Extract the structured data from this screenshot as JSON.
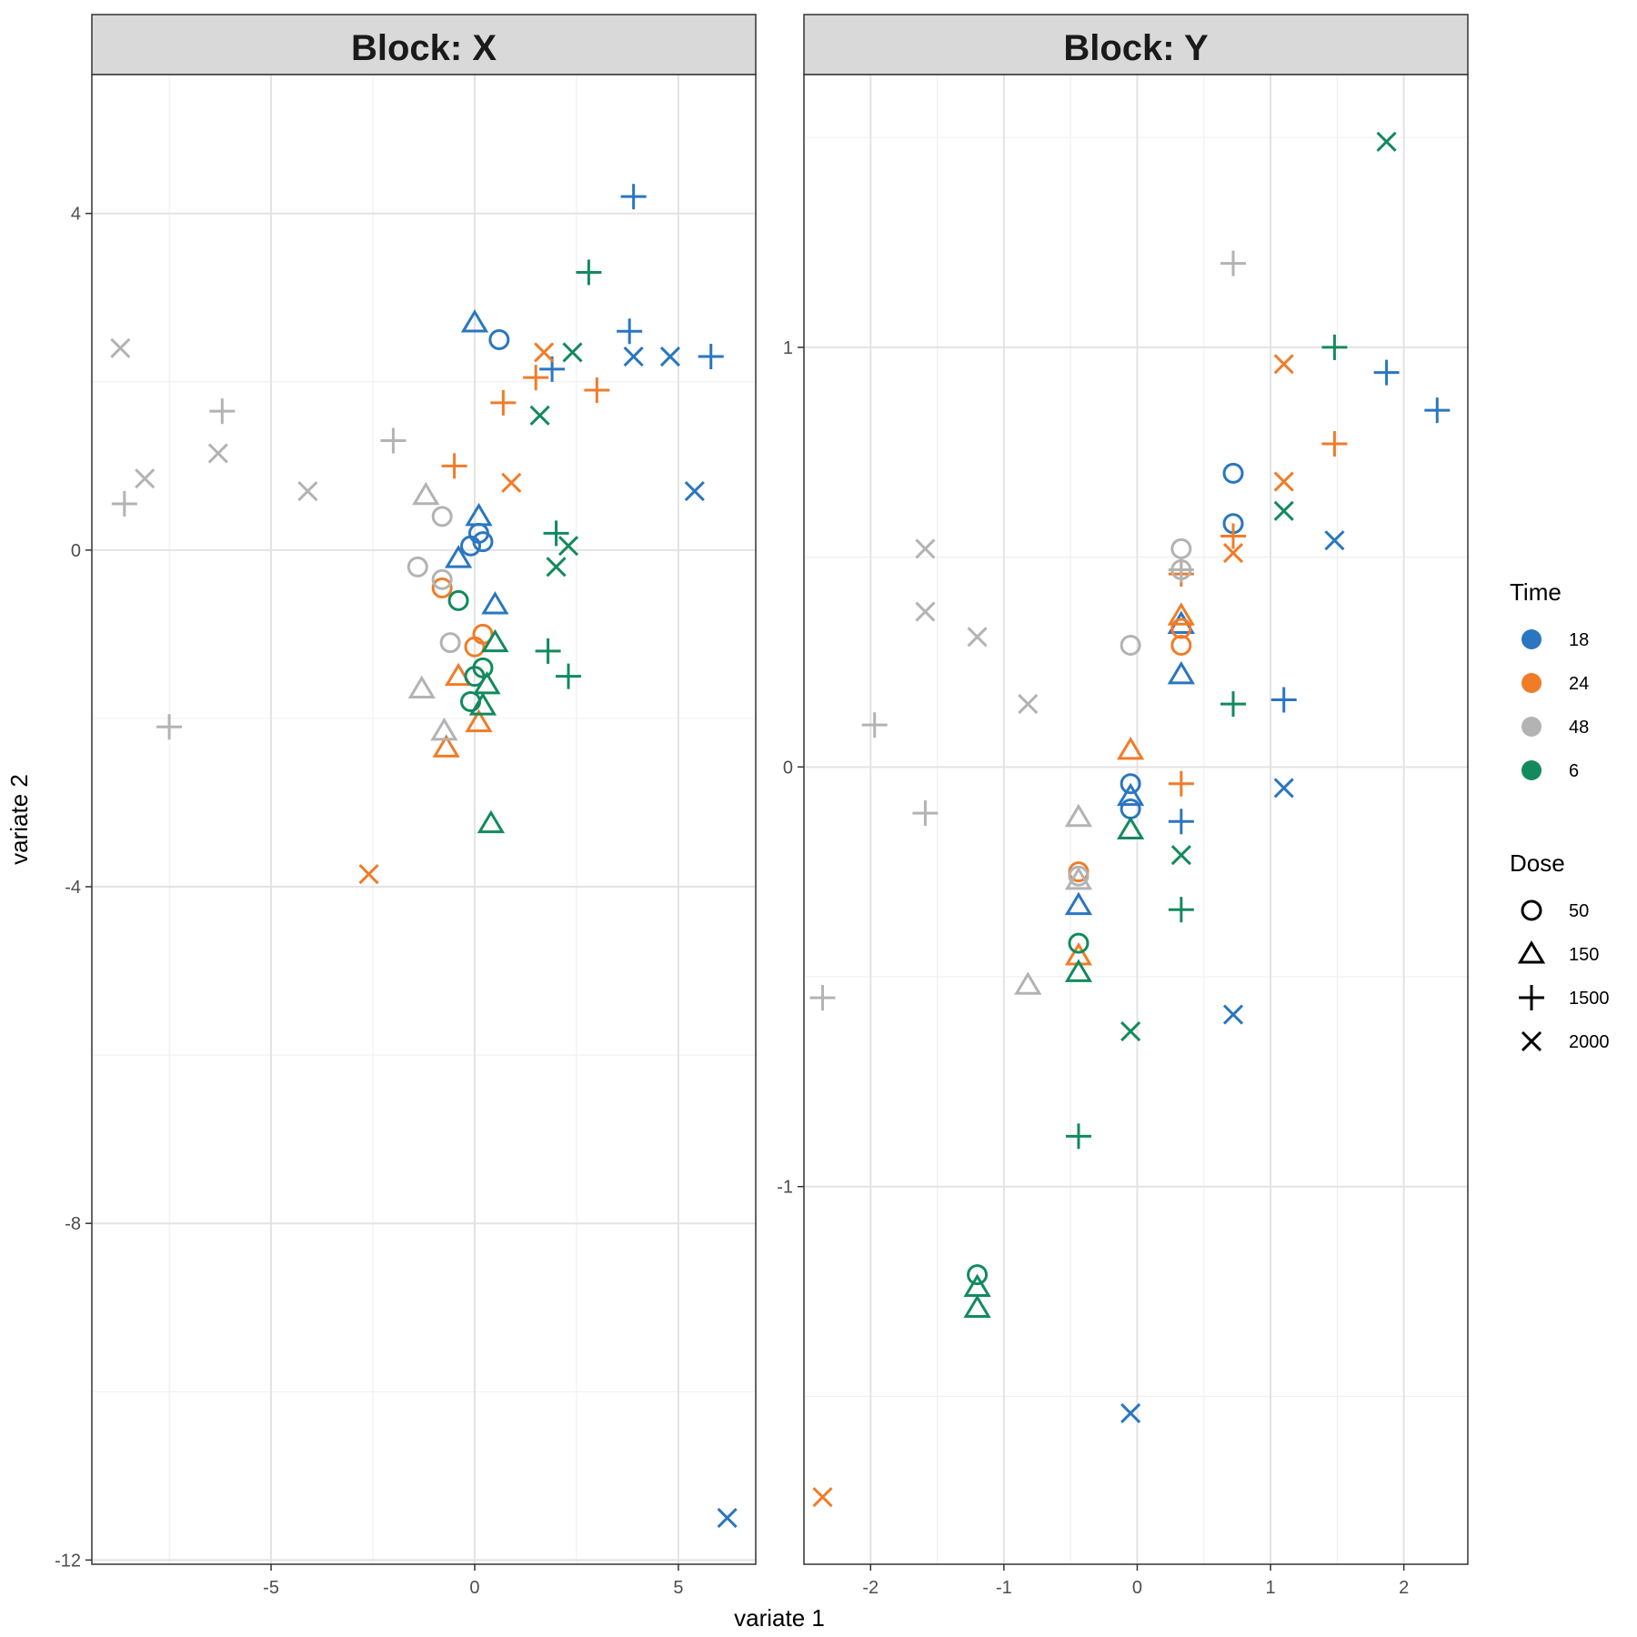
{
  "chart_data": {
    "type": "scatter",
    "xlabel": "variate 1",
    "ylabel": "variate 2",
    "colors": {
      "18": "#2a76c0",
      "24": "#f07c28",
      "48": "#b3b3b3",
      "6": "#128a5e"
    },
    "legend": {
      "position": "right",
      "time_title": "Time",
      "time_levels": [
        "18",
        "24",
        "48",
        "6"
      ],
      "dose_title": "Dose",
      "dose_levels": [
        "50",
        "150",
        "1500",
        "2000"
      ]
    },
    "grid": true,
    "panels": [
      {
        "title": "Block: X",
        "xlim": [
          -9.4,
          6.9
        ],
        "ylim": [
          -12.05,
          5.65
        ],
        "xticks": [
          -5,
          0,
          5
        ],
        "xtick_labels": [
          "-5",
          "0",
          "5"
        ],
        "yticks": [
          4,
          0,
          -4,
          -8,
          -12
        ],
        "ytick_labels": [
          "4",
          "0",
          "-4",
          "-8",
          "-12"
        ],
        "points": [
          {
            "x": 3.9,
            "y": 4.2,
            "time": "18",
            "dose": "1500"
          },
          {
            "x": 3.8,
            "y": 2.6,
            "time": "18",
            "dose": "1500"
          },
          {
            "x": 5.8,
            "y": 2.3,
            "time": "18",
            "dose": "1500"
          },
          {
            "x": 1.9,
            "y": 2.15,
            "time": "18",
            "dose": "1500"
          },
          {
            "x": 3.9,
            "y": 2.3,
            "time": "18",
            "dose": "2000"
          },
          {
            "x": 4.8,
            "y": 2.3,
            "time": "18",
            "dose": "2000"
          },
          {
            "x": 5.4,
            "y": 0.7,
            "time": "18",
            "dose": "2000"
          },
          {
            "x": 6.2,
            "y": -11.5,
            "time": "18",
            "dose": "2000"
          },
          {
            "x": 0.0,
            "y": 2.7,
            "time": "18",
            "dose": "150"
          },
          {
            "x": 0.1,
            "y": 0.4,
            "time": "18",
            "dose": "150"
          },
          {
            "x": -0.4,
            "y": -0.1,
            "time": "18",
            "dose": "150"
          },
          {
            "x": 0.5,
            "y": -0.65,
            "time": "18",
            "dose": "150"
          },
          {
            "x": 0.6,
            "y": 2.5,
            "time": "18",
            "dose": "50"
          },
          {
            "x": 0.1,
            "y": 0.2,
            "time": "18",
            "dose": "50"
          },
          {
            "x": 0.2,
            "y": 0.1,
            "time": "18",
            "dose": "50"
          },
          {
            "x": -0.1,
            "y": 0.05,
            "time": "18",
            "dose": "50"
          },
          {
            "x": 1.5,
            "y": 2.05,
            "time": "24",
            "dose": "1500"
          },
          {
            "x": 0.7,
            "y": 1.75,
            "time": "24",
            "dose": "1500"
          },
          {
            "x": 3.0,
            "y": 1.9,
            "time": "24",
            "dose": "1500"
          },
          {
            "x": -0.5,
            "y": 1.0,
            "time": "24",
            "dose": "1500"
          },
          {
            "x": 1.7,
            "y": 2.35,
            "time": "24",
            "dose": "2000"
          },
          {
            "x": 0.9,
            "y": 0.8,
            "time": "24",
            "dose": "2000"
          },
          {
            "x": -2.6,
            "y": -3.85,
            "time": "24",
            "dose": "2000"
          },
          {
            "x": -0.8,
            "y": -0.45,
            "time": "24",
            "dose": "50"
          },
          {
            "x": 0.2,
            "y": -1.0,
            "time": "24",
            "dose": "50"
          },
          {
            "x": 0.0,
            "y": -1.15,
            "time": "24",
            "dose": "50"
          },
          {
            "x": -0.4,
            "y": -1.5,
            "time": "24",
            "dose": "150"
          },
          {
            "x": 0.1,
            "y": -2.05,
            "time": "24",
            "dose": "150"
          },
          {
            "x": -0.7,
            "y": -2.35,
            "time": "24",
            "dose": "150"
          },
          {
            "x": -8.7,
            "y": 2.4,
            "time": "48",
            "dose": "2000"
          },
          {
            "x": -8.1,
            "y": 0.85,
            "time": "48",
            "dose": "2000"
          },
          {
            "x": -6.3,
            "y": 1.15,
            "time": "48",
            "dose": "2000"
          },
          {
            "x": -4.1,
            "y": 0.7,
            "time": "48",
            "dose": "2000"
          },
          {
            "x": -8.6,
            "y": 0.55,
            "time": "48",
            "dose": "1500"
          },
          {
            "x": -6.2,
            "y": 1.65,
            "time": "48",
            "dose": "1500"
          },
          {
            "x": -2.0,
            "y": 1.3,
            "time": "48",
            "dose": "1500"
          },
          {
            "x": -7.5,
            "y": -2.1,
            "time": "48",
            "dose": "1500"
          },
          {
            "x": -1.2,
            "y": 0.65,
            "time": "48",
            "dose": "150"
          },
          {
            "x": -1.3,
            "y": -1.65,
            "time": "48",
            "dose": "150"
          },
          {
            "x": -0.75,
            "y": -2.15,
            "time": "48",
            "dose": "150"
          },
          {
            "x": -0.8,
            "y": 0.4,
            "time": "48",
            "dose": "50"
          },
          {
            "x": -1.4,
            "y": -0.2,
            "time": "48",
            "dose": "50"
          },
          {
            "x": -0.8,
            "y": -0.35,
            "time": "48",
            "dose": "50"
          },
          {
            "x": -0.6,
            "y": -1.1,
            "time": "48",
            "dose": "50"
          },
          {
            "x": 2.8,
            "y": 3.3,
            "time": "6",
            "dose": "1500"
          },
          {
            "x": 2.0,
            "y": 0.2,
            "time": "6",
            "dose": "1500"
          },
          {
            "x": 1.8,
            "y": -1.2,
            "time": "6",
            "dose": "1500"
          },
          {
            "x": 2.3,
            "y": -1.5,
            "time": "6",
            "dose": "1500"
          },
          {
            "x": 2.4,
            "y": 2.35,
            "time": "6",
            "dose": "2000"
          },
          {
            "x": 1.6,
            "y": 1.6,
            "time": "6",
            "dose": "2000"
          },
          {
            "x": 2.3,
            "y": 0.05,
            "time": "6",
            "dose": "2000"
          },
          {
            "x": 2.0,
            "y": -0.2,
            "time": "6",
            "dose": "2000"
          },
          {
            "x": -0.4,
            "y": -0.6,
            "time": "6",
            "dose": "50"
          },
          {
            "x": 0.2,
            "y": -1.4,
            "time": "6",
            "dose": "50"
          },
          {
            "x": 0.0,
            "y": -1.5,
            "time": "6",
            "dose": "50"
          },
          {
            "x": -0.1,
            "y": -1.8,
            "time": "6",
            "dose": "50"
          },
          {
            "x": 0.5,
            "y": -1.1,
            "time": "6",
            "dose": "150"
          },
          {
            "x": 0.3,
            "y": -1.6,
            "time": "6",
            "dose": "150"
          },
          {
            "x": 0.2,
            "y": -1.85,
            "time": "6",
            "dose": "150"
          },
          {
            "x": 0.4,
            "y": -3.25,
            "time": "6",
            "dose": "150"
          }
        ]
      },
      {
        "title": "Block: Y",
        "xlim": [
          -2.5,
          2.48
        ],
        "ylim": [
          -1.9,
          1.65
        ],
        "xticks": [
          -2,
          -1,
          0,
          1,
          2
        ],
        "xtick_labels": [
          "-2",
          "-1",
          "0",
          "1",
          "2"
        ],
        "yticks": [
          1,
          0,
          -1
        ],
        "ytick_labels": [
          "1",
          "0",
          "-1"
        ],
        "points": [
          {
            "x": 1.87,
            "y": 0.94,
            "time": "18",
            "dose": "1500"
          },
          {
            "x": 2.25,
            "y": 0.85,
            "time": "18",
            "dose": "1500"
          },
          {
            "x": 1.1,
            "y": 0.16,
            "time": "18",
            "dose": "1500"
          },
          {
            "x": 0.33,
            "y": -0.13,
            "time": "18",
            "dose": "1500"
          },
          {
            "x": 1.48,
            "y": 0.54,
            "time": "18",
            "dose": "2000"
          },
          {
            "x": 1.1,
            "y": -0.05,
            "time": "18",
            "dose": "2000"
          },
          {
            "x": 0.72,
            "y": -0.59,
            "time": "18",
            "dose": "2000"
          },
          {
            "x": -0.05,
            "y": -1.54,
            "time": "18",
            "dose": "2000"
          },
          {
            "x": 0.72,
            "y": 0.7,
            "time": "18",
            "dose": "50"
          },
          {
            "x": 0.72,
            "y": 0.58,
            "time": "18",
            "dose": "50"
          },
          {
            "x": -0.05,
            "y": -0.04,
            "time": "18",
            "dose": "50"
          },
          {
            "x": -0.05,
            "y": -0.1,
            "time": "18",
            "dose": "50"
          },
          {
            "x": 0.33,
            "y": 0.34,
            "time": "18",
            "dose": "150"
          },
          {
            "x": 0.33,
            "y": 0.22,
            "time": "18",
            "dose": "150"
          },
          {
            "x": -0.05,
            "y": -0.07,
            "time": "18",
            "dose": "150"
          },
          {
            "x": -0.44,
            "y": -0.33,
            "time": "18",
            "dose": "150"
          },
          {
            "x": 1.1,
            "y": 0.96,
            "time": "24",
            "dose": "2000"
          },
          {
            "x": 1.1,
            "y": 0.68,
            "time": "24",
            "dose": "2000"
          },
          {
            "x": 0.72,
            "y": 0.51,
            "time": "24",
            "dose": "2000"
          },
          {
            "x": -2.36,
            "y": -1.74,
            "time": "24",
            "dose": "2000"
          },
          {
            "x": 1.48,
            "y": 0.77,
            "time": "24",
            "dose": "1500"
          },
          {
            "x": 0.72,
            "y": 0.55,
            "time": "24",
            "dose": "1500"
          },
          {
            "x": 0.33,
            "y": 0.46,
            "time": "24",
            "dose": "1500"
          },
          {
            "x": 0.33,
            "y": -0.04,
            "time": "24",
            "dose": "1500"
          },
          {
            "x": 0.33,
            "y": 0.33,
            "time": "24",
            "dose": "50"
          },
          {
            "x": 0.33,
            "y": 0.29,
            "time": "24",
            "dose": "50"
          },
          {
            "x": -0.44,
            "y": -0.25,
            "time": "24",
            "dose": "50"
          },
          {
            "x": -0.05,
            "y": 0.04,
            "time": "24",
            "dose": "150"
          },
          {
            "x": 0.33,
            "y": 0.36,
            "time": "24",
            "dose": "150"
          },
          {
            "x": -0.44,
            "y": -0.45,
            "time": "24",
            "dose": "150"
          },
          {
            "x": 0.72,
            "y": 1.2,
            "time": "48",
            "dose": "1500"
          },
          {
            "x": 0.33,
            "y": 0.47,
            "time": "48",
            "dose": "1500"
          },
          {
            "x": -1.97,
            "y": 0.1,
            "time": "48",
            "dose": "1500"
          },
          {
            "x": -1.59,
            "y": -0.11,
            "time": "48",
            "dose": "1500"
          },
          {
            "x": -2.36,
            "y": -0.55,
            "time": "48",
            "dose": "1500"
          },
          {
            "x": -1.59,
            "y": 0.52,
            "time": "48",
            "dose": "2000"
          },
          {
            "x": -1.59,
            "y": 0.37,
            "time": "48",
            "dose": "2000"
          },
          {
            "x": -1.2,
            "y": 0.31,
            "time": "48",
            "dose": "2000"
          },
          {
            "x": -0.82,
            "y": 0.15,
            "time": "48",
            "dose": "2000"
          },
          {
            "x": 0.33,
            "y": 0.52,
            "time": "48",
            "dose": "50"
          },
          {
            "x": 0.33,
            "y": 0.47,
            "time": "48",
            "dose": "50"
          },
          {
            "x": -0.05,
            "y": 0.29,
            "time": "48",
            "dose": "50"
          },
          {
            "x": -0.44,
            "y": -0.26,
            "time": "48",
            "dose": "50"
          },
          {
            "x": -0.44,
            "y": -0.12,
            "time": "48",
            "dose": "150"
          },
          {
            "x": -0.44,
            "y": -0.27,
            "time": "48",
            "dose": "150"
          },
          {
            "x": -0.82,
            "y": -0.52,
            "time": "48",
            "dose": "150"
          },
          {
            "x": 1.87,
            "y": 1.49,
            "time": "6",
            "dose": "2000"
          },
          {
            "x": 1.1,
            "y": 0.61,
            "time": "6",
            "dose": "2000"
          },
          {
            "x": 0.33,
            "y": -0.21,
            "time": "6",
            "dose": "2000"
          },
          {
            "x": -0.05,
            "y": -0.63,
            "time": "6",
            "dose": "2000"
          },
          {
            "x": 1.48,
            "y": 1.0,
            "time": "6",
            "dose": "1500"
          },
          {
            "x": 0.72,
            "y": 0.15,
            "time": "6",
            "dose": "1500"
          },
          {
            "x": 0.33,
            "y": -0.34,
            "time": "6",
            "dose": "1500"
          },
          {
            "x": -0.44,
            "y": -0.88,
            "time": "6",
            "dose": "1500"
          },
          {
            "x": -0.44,
            "y": -0.42,
            "time": "6",
            "dose": "50"
          },
          {
            "x": -1.2,
            "y": -1.21,
            "time": "6",
            "dose": "50"
          },
          {
            "x": -0.05,
            "y": -0.15,
            "time": "6",
            "dose": "150"
          },
          {
            "x": -0.44,
            "y": -0.49,
            "time": "6",
            "dose": "150"
          },
          {
            "x": -1.2,
            "y": -1.24,
            "time": "6",
            "dose": "150"
          },
          {
            "x": -1.2,
            "y": -1.29,
            "time": "6",
            "dose": "150"
          }
        ]
      }
    ]
  }
}
